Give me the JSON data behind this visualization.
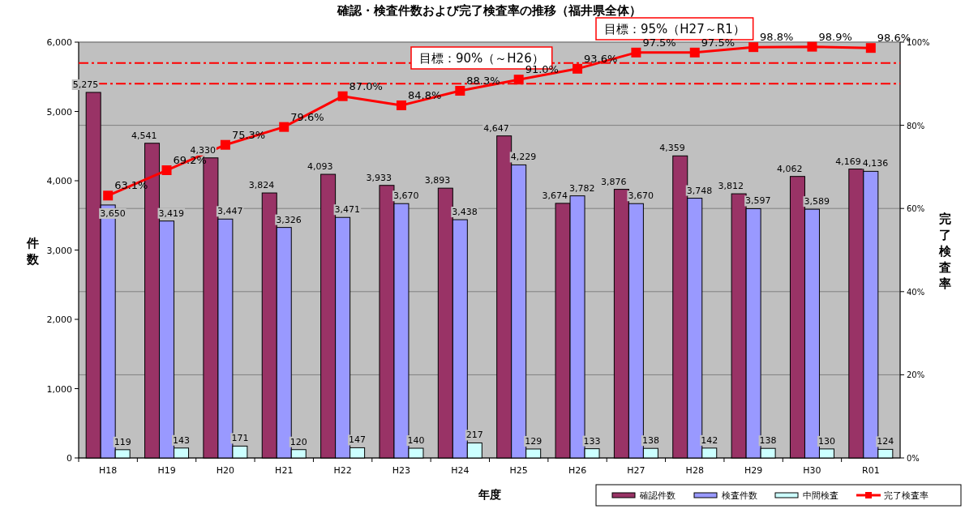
{
  "chart_data": {
    "type": "bar",
    "title": "確認・検査件数および完了検査率の推移（福井県全体）",
    "xlabel": "年度",
    "ylabel": "件数",
    "y2label": "完了検査率",
    "categories": [
      "H18",
      "H19",
      "H20",
      "H21",
      "H22",
      "H23",
      "H24",
      "H25",
      "H26",
      "H27",
      "H28",
      "H29",
      "H30",
      "R01"
    ],
    "series": [
      {
        "name": "確認件数",
        "type": "bar",
        "color": "#993366",
        "values": [
          5275,
          4541,
          4330,
          3824,
          4093,
          3933,
          3893,
          4647,
          3674,
          3876,
          4359,
          3812,
          4062,
          4169
        ],
        "value_labels": [
          "5,275",
          "4,541",
          "4,330",
          "3,824",
          "4,093",
          "3,933",
          "3,893",
          "4,647",
          "3,674",
          "3,876",
          "4,359",
          "3,812",
          "4,062",
          "4,169"
        ]
      },
      {
        "name": "検査件数",
        "type": "bar",
        "color": "#9999ff",
        "values": [
          3650,
          3419,
          3447,
          3326,
          3471,
          3670,
          3438,
          4229,
          3782,
          3670,
          3748,
          3597,
          3589,
          4136
        ],
        "value_labels": [
          "3,650",
          "3,419",
          "3,447",
          "3,326",
          "3,471",
          "3,670",
          "3,438",
          "4,229",
          "3,782",
          "3,670",
          "3,748",
          "3,597",
          "3,589",
          "4,136"
        ]
      },
      {
        "name": "中間検査",
        "type": "bar",
        "color": "#ccffff",
        "values": [
          119,
          143,
          171,
          120,
          147,
          140,
          217,
          129,
          133,
          138,
          142,
          138,
          130,
          124
        ],
        "value_labels": [
          "119",
          "143",
          "171",
          "120",
          "147",
          "140",
          "217",
          "129",
          "133",
          "138",
          "142",
          "138",
          "130",
          "124"
        ]
      },
      {
        "name": "完了検査率",
        "type": "line",
        "axis": "y2",
        "color": "#ff0000",
        "marker": "square",
        "values": [
          63.1,
          69.2,
          75.3,
          79.6,
          87.0,
          84.8,
          88.3,
          91.0,
          93.6,
          97.5,
          97.5,
          98.8,
          98.9,
          98.6
        ],
        "value_labels": [
          "63.1%",
          "69.2%",
          "75.3%",
          "79.6%",
          "87.0%",
          "84.8%",
          "88.3%",
          "91.0%",
          "93.6%",
          "97.5%",
          "97.5%",
          "98.8%",
          "98.9%",
          "98.6%"
        ]
      }
    ],
    "ylim": [
      0,
      6000
    ],
    "yticks": [
      {
        "value": 0,
        "label": "0"
      },
      {
        "value": 1000,
        "label": "1,000"
      },
      {
        "value": 2000,
        "label": "2,000"
      },
      {
        "value": 3000,
        "label": "3,000"
      },
      {
        "value": 4000,
        "label": "4,000"
      },
      {
        "value": 5000,
        "label": "5,000"
      },
      {
        "value": 6000,
        "label": "6,000"
      }
    ],
    "y2lim": [
      0,
      100
    ],
    "y2ticks": [
      {
        "value": 0,
        "label": "0%"
      },
      {
        "value": 20,
        "label": "20%"
      },
      {
        "value": 40,
        "label": "40%"
      },
      {
        "value": 60,
        "label": "60%"
      },
      {
        "value": 80,
        "label": "80%"
      },
      {
        "value": 100,
        "label": "100%"
      }
    ],
    "ref_lines": [
      {
        "axis": "y2",
        "value": 90,
        "label": "目標：90%（～H26）",
        "color": "#ff0000",
        "line_style": "dashed"
      },
      {
        "axis": "y2",
        "value": 95,
        "label": "目標：95%（H27～R1）",
        "color": "#ff0000",
        "line_style": "dashed"
      }
    ],
    "grid": "y",
    "legend": "bottom"
  }
}
